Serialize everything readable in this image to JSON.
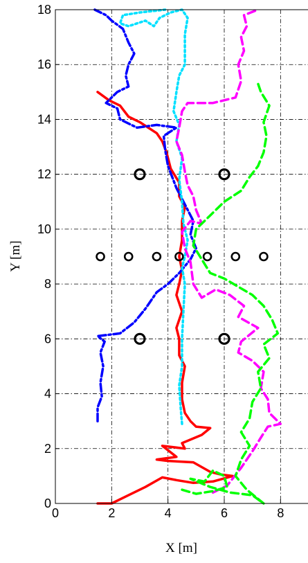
{
  "chart_data": {
    "type": "line",
    "title": "",
    "xlabel": "X [m]",
    "ylabel": "Y [m]",
    "xlim": [
      0,
      9
    ],
    "ylim": [
      0,
      18
    ],
    "xticks": [
      0,
      2,
      4,
      6,
      8
    ],
    "yticks": [
      0,
      2,
      4,
      6,
      8,
      10,
      12,
      14,
      16,
      18
    ],
    "grid": true,
    "legend": "none",
    "series": [
      {
        "color": "#ff0000",
        "style": "solid",
        "points": [
          [
            1.5,
            0.0
          ],
          [
            2.0,
            0.0
          ],
          [
            2.6,
            0.3
          ],
          [
            3.2,
            0.6
          ],
          [
            3.8,
            0.95
          ],
          [
            4.3,
            0.85
          ],
          [
            4.9,
            0.75
          ],
          [
            5.6,
            0.8
          ],
          [
            6.3,
            1.0
          ],
          [
            5.9,
            1.05
          ],
          [
            5.5,
            1.15
          ],
          [
            4.9,
            1.5
          ],
          [
            4.0,
            1.55
          ],
          [
            3.6,
            1.6
          ],
          [
            4.3,
            1.7
          ],
          [
            3.8,
            2.1
          ],
          [
            4.6,
            2.0
          ],
          [
            4.5,
            2.2
          ],
          [
            5.2,
            2.5
          ],
          [
            5.5,
            2.75
          ],
          [
            5.0,
            2.8
          ],
          [
            4.8,
            3.0
          ],
          [
            4.6,
            3.3
          ],
          [
            4.5,
            3.8
          ],
          [
            4.5,
            4.4
          ],
          [
            4.6,
            5.0
          ],
          [
            4.4,
            5.4
          ],
          [
            4.4,
            6.0
          ],
          [
            4.3,
            6.4
          ],
          [
            4.5,
            7.0
          ],
          [
            4.3,
            7.6
          ],
          [
            4.4,
            8.0
          ],
          [
            4.5,
            8.5
          ],
          [
            4.4,
            9.0
          ],
          [
            4.5,
            9.6
          ],
          [
            4.5,
            10.3
          ],
          [
            4.6,
            10.8
          ],
          [
            4.4,
            11.2
          ],
          [
            4.4,
            11.7
          ],
          [
            4.1,
            12.2
          ],
          [
            3.95,
            12.8
          ],
          [
            3.8,
            13.2
          ],
          [
            3.6,
            13.5
          ],
          [
            3.0,
            13.9
          ],
          [
            2.6,
            14.1
          ],
          [
            2.3,
            14.5
          ],
          [
            1.9,
            14.7
          ],
          [
            1.5,
            15.0
          ]
        ]
      },
      {
        "color": "#0000ff",
        "style": "dashdot",
        "points": [
          [
            1.5,
            3.0
          ],
          [
            1.5,
            3.5
          ],
          [
            1.65,
            3.9
          ],
          [
            1.6,
            4.4
          ],
          [
            1.7,
            5.0
          ],
          [
            1.6,
            5.5
          ],
          [
            1.75,
            5.9
          ],
          [
            1.5,
            6.1
          ],
          [
            2.3,
            6.2
          ],
          [
            2.8,
            6.6
          ],
          [
            3.2,
            7.1
          ],
          [
            3.6,
            7.7
          ],
          [
            4.0,
            8.0
          ],
          [
            4.4,
            8.4
          ],
          [
            4.8,
            8.9
          ],
          [
            5.0,
            9.3
          ],
          [
            4.8,
            9.8
          ],
          [
            4.9,
            10.3
          ],
          [
            4.6,
            10.9
          ],
          [
            4.3,
            11.5
          ],
          [
            4.0,
            12.3
          ],
          [
            3.9,
            12.9
          ],
          [
            3.85,
            13.4
          ],
          [
            4.3,
            13.7
          ],
          [
            3.6,
            13.8
          ],
          [
            2.9,
            13.7
          ],
          [
            2.3,
            14.0
          ],
          [
            2.2,
            14.4
          ],
          [
            1.8,
            14.6
          ],
          [
            2.2,
            15.0
          ],
          [
            2.6,
            15.2
          ],
          [
            2.5,
            15.6
          ],
          [
            2.6,
            16.0
          ],
          [
            2.8,
            16.4
          ],
          [
            2.6,
            16.8
          ],
          [
            2.4,
            17.3
          ],
          [
            2.0,
            17.6
          ],
          [
            1.8,
            17.8
          ],
          [
            1.4,
            18.0
          ]
        ]
      },
      {
        "color": "#00e0ff",
        "style": "dotted",
        "points": [
          [
            4.5,
            2.9
          ],
          [
            4.45,
            3.5
          ],
          [
            4.4,
            4.3
          ],
          [
            4.5,
            5.0
          ],
          [
            4.5,
            6.0
          ],
          [
            4.55,
            7.0
          ],
          [
            4.6,
            8.0
          ],
          [
            4.5,
            8.6
          ],
          [
            4.6,
            9.0
          ],
          [
            4.7,
            9.6
          ],
          [
            4.55,
            10.2
          ],
          [
            4.5,
            11.0
          ],
          [
            4.4,
            11.8
          ],
          [
            4.5,
            12.6
          ],
          [
            4.3,
            13.2
          ],
          [
            4.4,
            13.8
          ],
          [
            4.2,
            14.3
          ],
          [
            4.3,
            15.0
          ],
          [
            4.4,
            15.6
          ],
          [
            4.6,
            16.0
          ],
          [
            4.6,
            16.6
          ],
          [
            4.6,
            17.1
          ],
          [
            4.7,
            17.7
          ],
          [
            4.5,
            18.0
          ],
          [
            4.1,
            17.9
          ],
          [
            3.7,
            17.7
          ],
          [
            3.5,
            17.4
          ],
          [
            3.2,
            17.6
          ],
          [
            2.6,
            17.4
          ],
          [
            2.3,
            17.5
          ],
          [
            2.4,
            17.8
          ],
          [
            3.0,
            17.9
          ],
          [
            3.9,
            18.0
          ]
        ]
      },
      {
        "color": "#ff00ff",
        "style": "dashed",
        "points": [
          [
            5.6,
            0.4
          ],
          [
            6.1,
            0.65
          ],
          [
            6.6,
            1.3
          ],
          [
            7.0,
            1.9
          ],
          [
            7.3,
            2.4
          ],
          [
            7.55,
            2.8
          ],
          [
            8.0,
            2.9
          ],
          [
            7.6,
            3.3
          ],
          [
            7.55,
            3.8
          ],
          [
            7.3,
            4.2
          ],
          [
            7.4,
            4.8
          ],
          [
            7.0,
            5.2
          ],
          [
            6.5,
            5.5
          ],
          [
            6.6,
            5.9
          ],
          [
            7.2,
            6.4
          ],
          [
            6.5,
            6.8
          ],
          [
            6.7,
            7.2
          ],
          [
            6.2,
            7.6
          ],
          [
            5.7,
            7.8
          ],
          [
            5.2,
            7.5
          ],
          [
            4.9,
            8.0
          ],
          [
            4.8,
            8.8
          ],
          [
            4.6,
            9.3
          ],
          [
            4.5,
            9.9
          ],
          [
            4.8,
            10.3
          ],
          [
            5.2,
            10.2
          ],
          [
            5.0,
            10.7
          ],
          [
            4.9,
            11.2
          ],
          [
            4.7,
            11.6
          ],
          [
            4.6,
            12.1
          ],
          [
            4.5,
            12.7
          ],
          [
            4.3,
            13.2
          ],
          [
            4.4,
            13.7
          ],
          [
            4.5,
            14.3
          ],
          [
            4.7,
            14.6
          ],
          [
            5.6,
            14.6
          ],
          [
            6.4,
            14.8
          ],
          [
            6.6,
            15.4
          ],
          [
            6.5,
            16.0
          ],
          [
            6.7,
            16.5
          ],
          [
            6.6,
            17.0
          ],
          [
            6.8,
            17.4
          ],
          [
            6.7,
            17.8
          ],
          [
            7.2,
            18.0
          ]
        ]
      },
      {
        "color": "#00ff00",
        "style": "dashed",
        "points": [
          [
            4.5,
            0.5
          ],
          [
            5.0,
            0.35
          ],
          [
            5.6,
            0.45
          ],
          [
            6.1,
            0.6
          ],
          [
            6.0,
            1.0
          ],
          [
            5.6,
            1.2
          ],
          [
            5.3,
            0.8
          ],
          [
            4.8,
            0.9
          ],
          [
            5.5,
            0.6
          ],
          [
            6.2,
            0.4
          ],
          [
            7.0,
            0.3
          ],
          [
            7.4,
            0.0
          ],
          [
            6.8,
            0.5
          ],
          [
            6.4,
            1.0
          ],
          [
            6.6,
            1.6
          ],
          [
            6.9,
            2.1
          ],
          [
            6.6,
            2.6
          ],
          [
            6.9,
            3.1
          ],
          [
            7.0,
            3.7
          ],
          [
            7.3,
            4.2
          ],
          [
            7.2,
            4.8
          ],
          [
            7.6,
            5.3
          ],
          [
            7.4,
            5.8
          ],
          [
            7.9,
            6.2
          ],
          [
            7.7,
            6.7
          ],
          [
            7.4,
            7.2
          ],
          [
            7.0,
            7.6
          ],
          [
            6.5,
            7.9
          ],
          [
            6.0,
            8.2
          ],
          [
            5.5,
            8.4
          ],
          [
            5.2,
            8.9
          ],
          [
            4.9,
            9.4
          ],
          [
            5.0,
            10.0
          ],
          [
            5.5,
            10.5
          ],
          [
            6.0,
            11.0
          ],
          [
            6.6,
            11.4
          ],
          [
            6.9,
            11.9
          ],
          [
            7.2,
            12.3
          ],
          [
            7.4,
            12.8
          ],
          [
            7.5,
            13.4
          ],
          [
            7.4,
            13.9
          ],
          [
            7.6,
            14.5
          ],
          [
            7.3,
            15.0
          ],
          [
            7.2,
            15.3
          ]
        ]
      }
    ],
    "markers": [
      [
        3.0,
        12.0
      ],
      [
        6.0,
        12.0
      ],
      [
        1.6,
        9.0
      ],
      [
        2.6,
        9.0
      ],
      [
        3.6,
        9.0
      ],
      [
        4.4,
        9.0
      ],
      [
        5.4,
        9.0
      ],
      [
        6.4,
        9.0
      ],
      [
        7.4,
        9.0
      ],
      [
        3.0,
        6.0
      ],
      [
        6.0,
        6.0
      ]
    ],
    "big_marker_points": [
      [
        3.0,
        12.0
      ],
      [
        6.0,
        12.0
      ],
      [
        3.0,
        6.0
      ],
      [
        6.0,
        6.0
      ]
    ]
  }
}
